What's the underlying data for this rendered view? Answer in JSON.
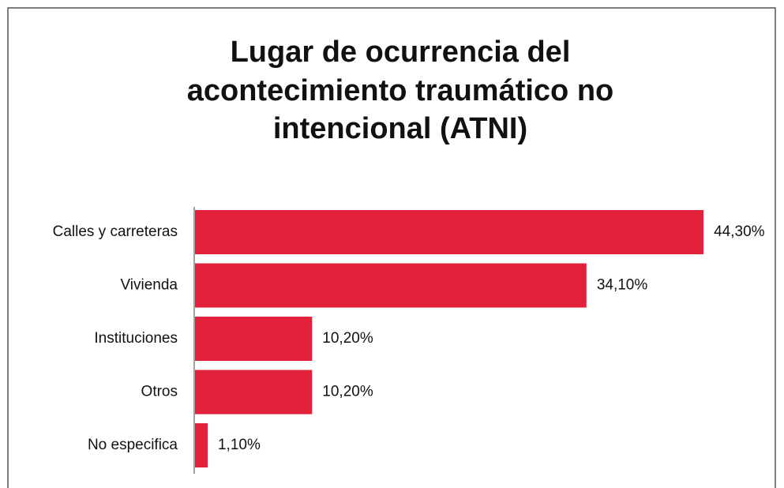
{
  "chart_data": {
    "type": "bar",
    "orientation": "horizontal",
    "title": [
      "Lugar de ocurrencia del",
      "acontecimiento traumático no",
      "intencional  (ATNI)"
    ],
    "categories": [
      "Calles y carreteras",
      "Vivienda",
      "Instituciones",
      "Otros",
      "No especifica"
    ],
    "values": [
      44.3,
      34.1,
      10.2,
      10.2,
      1.1
    ],
    "value_labels": [
      "44,30%",
      "34,10%",
      "10,20%",
      "10,20%",
      "1,10%"
    ],
    "color": "#e2223b"
  }
}
